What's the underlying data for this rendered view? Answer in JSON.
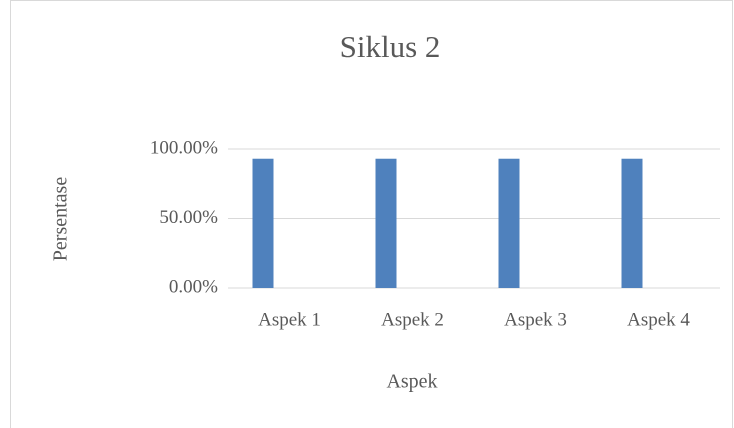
{
  "chart_data": {
    "type": "bar",
    "title": "Siklus 2",
    "x_label": "Aspek",
    "y_label": "Persentase",
    "categories": [
      "Aspek 1",
      "Aspek 2",
      "Aspek 3",
      "Aspek 4"
    ],
    "values": [
      93,
      93,
      93,
      93
    ],
    "color": "#4f81bd",
    "ylim": [
      0,
      100
    ],
    "yticks": [
      {
        "value": 0,
        "label": "0.00%"
      },
      {
        "value": 50,
        "label": "50.00%"
      },
      {
        "value": 100,
        "label": "100.00%"
      }
    ],
    "grid": true
  }
}
